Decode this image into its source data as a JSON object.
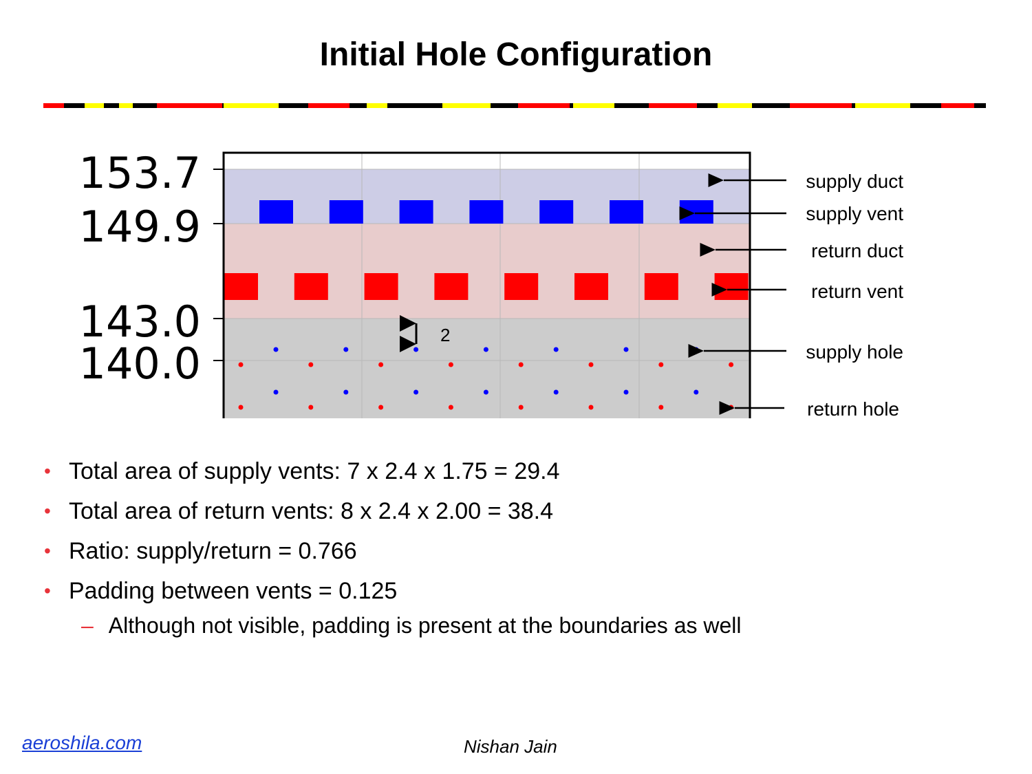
{
  "slide": {
    "title": "Initial Hole Configuration",
    "footer_link": "aeroshila.com",
    "footer_author": "Nishan Jain"
  },
  "diagram": {
    "y_ticks": [
      "153.7",
      "149.9",
      "143.0",
      "140.0"
    ],
    "spacing_label": "2",
    "supply_vent_count": 7,
    "return_vent_count": 8,
    "colors": {
      "supply_duct": "#cdcde6",
      "return_duct": "#e8cccc",
      "hole_region": "#cccccc",
      "supply": "#0000ff",
      "return": "#ff0000"
    },
    "labels": [
      {
        "id": "supply-duct",
        "text": "supply duct"
      },
      {
        "id": "supply-vent",
        "text": "supply vent"
      },
      {
        "id": "return-duct",
        "text": "return duct"
      },
      {
        "id": "return-vent",
        "text": "return vent"
      },
      {
        "id": "supply-hole",
        "text": "supply hole"
      },
      {
        "id": "return-hole",
        "text": "return hole"
      }
    ]
  },
  "bullets": [
    "Total area of supply vents: 7 x 2.4 x 1.75 = 29.4",
    "Total area of return vents: 8 x 2.4 x 2.00 = 38.4",
    "Ratio: supply/return = 0.766",
    "Padding between vents = 0.125"
  ],
  "sub_bullet": "Although not visible, padding is present at the boundaries as well"
}
